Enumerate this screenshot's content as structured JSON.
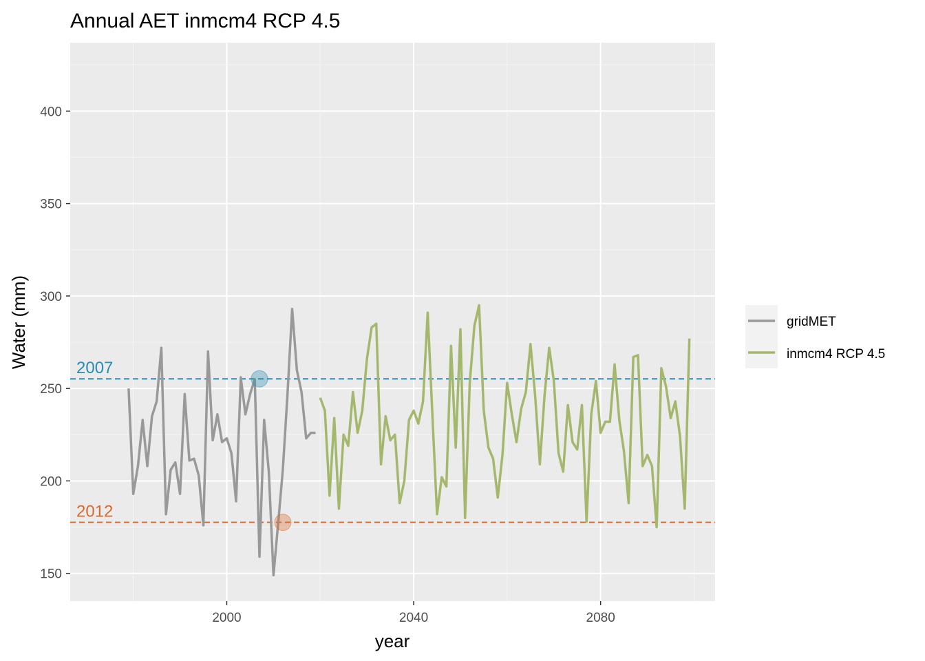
{
  "chart_data": {
    "type": "line",
    "title": "Annual AET inmcm4 RCP 4.5",
    "xlabel": "year",
    "ylabel": "Water (mm)",
    "xlim": [
      1966.5,
      2104.5
    ],
    "ylim": [
      135,
      437
    ],
    "x_ticks": [
      2000,
      2040,
      2080
    ],
    "x_tick_labels": [
      "2000",
      "2040",
      "2080"
    ],
    "y_ticks": [
      150,
      200,
      250,
      300,
      350,
      400
    ],
    "y_tick_labels": [
      "150",
      "200",
      "250",
      "300",
      "350",
      "400"
    ],
    "grid": true,
    "legend_position": "right",
    "series": [
      {
        "name": "gridMET",
        "color": "#999999",
        "x": [
          1979,
          1980,
          1981,
          1982,
          1983,
          1984,
          1985,
          1986,
          1987,
          1988,
          1989,
          1990,
          1991,
          1992,
          1993,
          1994,
          1995,
          1996,
          1997,
          1998,
          1999,
          2000,
          2001,
          2002,
          2003,
          2004,
          2005,
          2006,
          2007,
          2008,
          2009,
          2010,
          2011,
          2012,
          2013,
          2014,
          2015,
          2016,
          2017,
          2018,
          2019
        ],
        "y": [
          250,
          193,
          208,
          233,
          208,
          235,
          243,
          272,
          182,
          206,
          210,
          193,
          247,
          211,
          212,
          203,
          176,
          270,
          222,
          236,
          221,
          223,
          215,
          189,
          256,
          236,
          247,
          255,
          159,
          233,
          205,
          149,
          177,
          206,
          247,
          293,
          260,
          248,
          223,
          226,
          226
        ]
      },
      {
        "name": "inmcm4 RCP 4.5",
        "color": "#a3b86c",
        "x": [
          2020,
          2021,
          2022,
          2023,
          2024,
          2025,
          2026,
          2027,
          2028,
          2029,
          2030,
          2031,
          2032,
          2033,
          2034,
          2035,
          2036,
          2037,
          2038,
          2039,
          2040,
          2041,
          2042,
          2043,
          2044,
          2045,
          2046,
          2047,
          2048,
          2049,
          2050,
          2051,
          2052,
          2053,
          2054,
          2055,
          2056,
          2057,
          2058,
          2059,
          2060,
          2061,
          2062,
          2063,
          2064,
          2065,
          2066,
          2067,
          2068,
          2069,
          2070,
          2071,
          2072,
          2073,
          2074,
          2075,
          2076,
          2077,
          2078,
          2079,
          2080,
          2081,
          2082,
          2083,
          2084,
          2085,
          2086,
          2087,
          2088,
          2089,
          2090,
          2091,
          2092,
          2093,
          2094,
          2095,
          2096,
          2097,
          2098,
          2099
        ],
        "y": [
          245,
          238,
          192,
          234,
          185,
          225,
          219,
          248,
          226,
          238,
          266,
          283,
          285,
          209,
          235,
          222,
          225,
          188,
          200,
          233,
          238,
          231,
          243,
          291,
          236,
          182,
          202,
          197,
          273,
          218,
          282,
          180,
          253,
          284,
          295,
          238,
          218,
          212,
          191,
          214,
          253,
          236,
          221,
          239,
          248,
          274,
          246,
          209,
          246,
          272,
          254,
          215,
          205,
          241,
          221,
          217,
          241,
          178,
          236,
          254,
          226,
          232,
          232,
          263,
          233,
          216,
          188,
          267,
          268,
          208,
          214,
          208,
          175,
          261,
          251,
          234,
          243,
          224,
          185,
          277
        ]
      }
    ],
    "reference_lines": [
      {
        "label": "2007",
        "y": 255.2,
        "color": "#2c8bb0",
        "marker_x": 2007
      },
      {
        "label": "2012",
        "y": 177.6,
        "color": "#d9692e",
        "marker_x": 2012
      }
    ]
  },
  "legend": {
    "items": [
      {
        "label": "gridMET",
        "color": "#999999"
      },
      {
        "label": "inmcm4 RCP 4.5",
        "color": "#a3b86c"
      }
    ]
  }
}
